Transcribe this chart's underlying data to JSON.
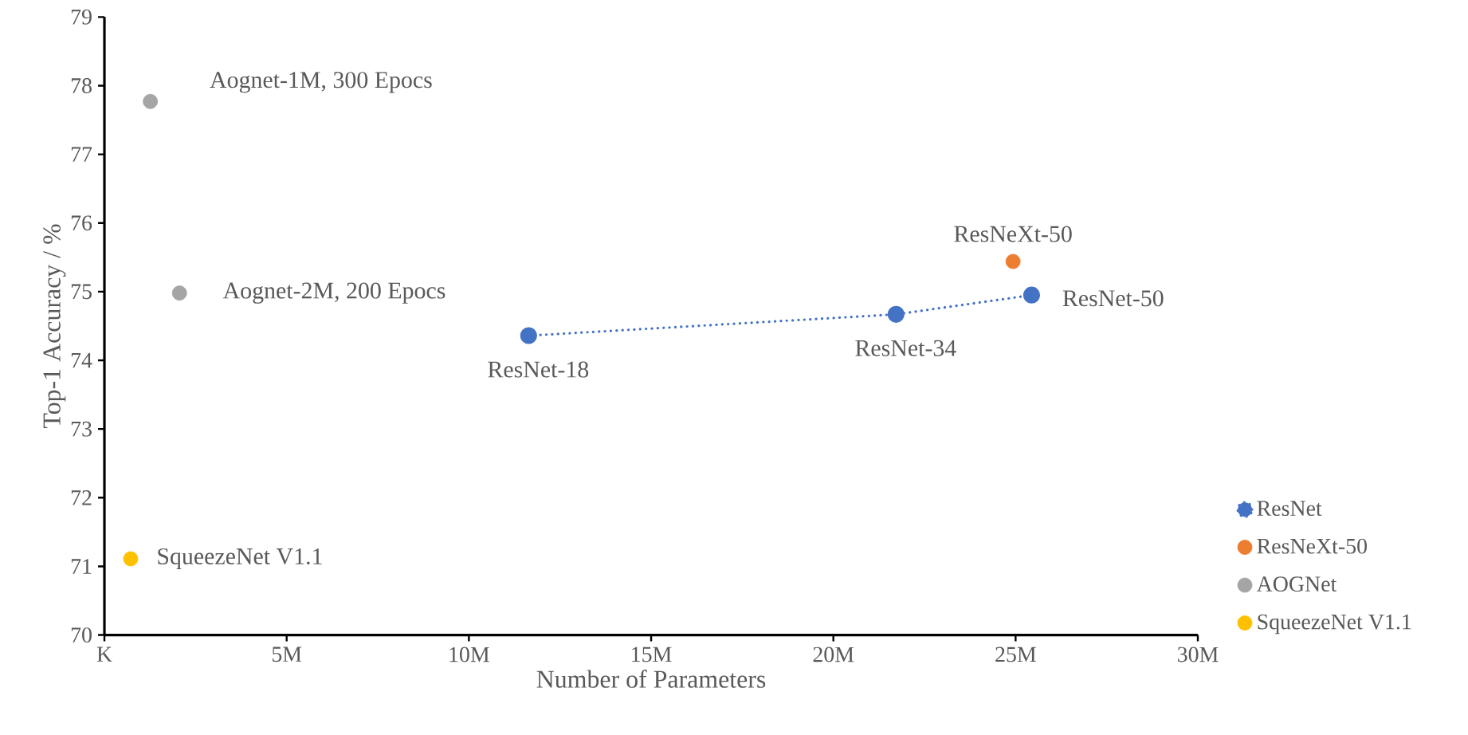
{
  "chart_data": {
    "type": "scatter",
    "xlabel": "Number of Parameters",
    "ylabel": "Top-1 Accuracy / %",
    "xlim": [
      0,
      30
    ],
    "ylim": [
      70,
      79
    ],
    "xticks": [
      {
        "value": 0,
        "label": "K"
      },
      {
        "value": 5,
        "label": "5M"
      },
      {
        "value": 10,
        "label": "10M"
      },
      {
        "value": 15,
        "label": "15M"
      },
      {
        "value": 20,
        "label": "20M"
      },
      {
        "value": 25,
        "label": "25M"
      },
      {
        "value": 30,
        "label": "30M"
      }
    ],
    "yticks": [
      70,
      71,
      72,
      73,
      74,
      75,
      76,
      77,
      78,
      79
    ],
    "marker": "circle",
    "grid": false,
    "legend": "right",
    "series": [
      {
        "name": "ResNet",
        "color": "#4472c4",
        "type": "line",
        "line_style": "dotted",
        "x": [
          11.64,
          21.72,
          25.44
        ],
        "values": [
          74.36,
          74.67,
          74.95
        ]
      },
      {
        "name": "ResNeXt-50",
        "color": "#ed7d31",
        "x": [
          24.93
        ],
        "values": [
          75.44
        ]
      },
      {
        "name": "AOGNet",
        "color": "#a5a5a5",
        "x": [
          1.26,
          2.06
        ],
        "values": [
          77.77,
          74.98
        ]
      },
      {
        "name": "SqueezeNet V1.1",
        "color": "#ffc000",
        "x": [
          0.72
        ],
        "values": [
          71.11
        ]
      }
    ],
    "annotations": [
      {
        "text": "Aognet-1M, 300 Epocs",
        "x": 1.26,
        "y": 77.77
      },
      {
        "text": "Aognet-2M, 200 Epocs",
        "x": 2.06,
        "y": 74.98
      },
      {
        "text": "SqueezeNet V1.1",
        "x": 0.72,
        "y": 71.11
      },
      {
        "text": "ResNet-18",
        "x": 11.64,
        "y": 74.36
      },
      {
        "text": "ResNet-34",
        "x": 21.72,
        "y": 74.67
      },
      {
        "text": "ResNeXt-50",
        "x": 24.93,
        "y": 75.44
      },
      {
        "text": "ResNet-50",
        "x": 25.44,
        "y": 74.95
      }
    ]
  }
}
